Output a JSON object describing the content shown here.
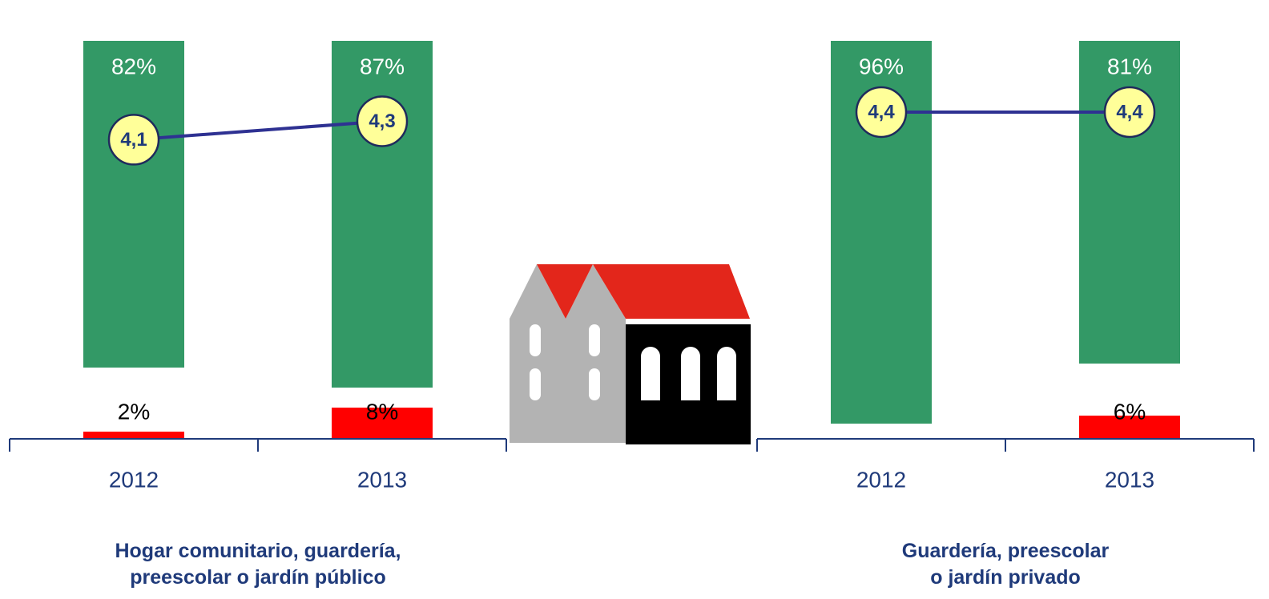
{
  "chart_data": [
    {
      "type": "bar",
      "title": "Hogar comunitario, guardería,\npreescolar o jardín público",
      "categories": [
        "2012",
        "2013"
      ],
      "ylim": [
        0,
        100
      ],
      "y2lim": [
        0.85,
        5.2
      ],
      "series": [
        {
          "color": "#339966",
          "values": [
            82,
            87
          ],
          "value_labels": [
            "82%",
            "87%"
          ]
        },
        {
          "color": "#ff0000",
          "values": [
            2,
            8
          ],
          "value_labels": [
            "2%",
            "8%"
          ]
        },
        {
          "type": "line",
          "axis": "y2",
          "color": "#2e3192",
          "values": [
            4.1,
            4.3
          ],
          "value_labels": [
            "4,1",
            "4,3"
          ]
        }
      ]
    },
    {
      "type": "bar",
      "title": "Guardería, preescolar\no jardín privado",
      "categories": [
        "2012",
        "2013"
      ],
      "ylim": [
        0,
        100
      ],
      "y2lim": [
        0.85,
        5.2
      ],
      "series": [
        {
          "color": "#339966",
          "values": [
            96,
            81
          ],
          "value_labels": [
            "96%",
            "81%"
          ]
        },
        {
          "color": "#ff0000",
          "values": [
            null,
            6
          ],
          "value_labels": [
            null,
            "6%"
          ]
        },
        {
          "type": "line",
          "axis": "y2",
          "color": "#2e3192",
          "values": [
            4.4,
            4.4
          ],
          "value_labels": [
            "4,4",
            "4,4"
          ]
        }
      ]
    }
  ]
}
